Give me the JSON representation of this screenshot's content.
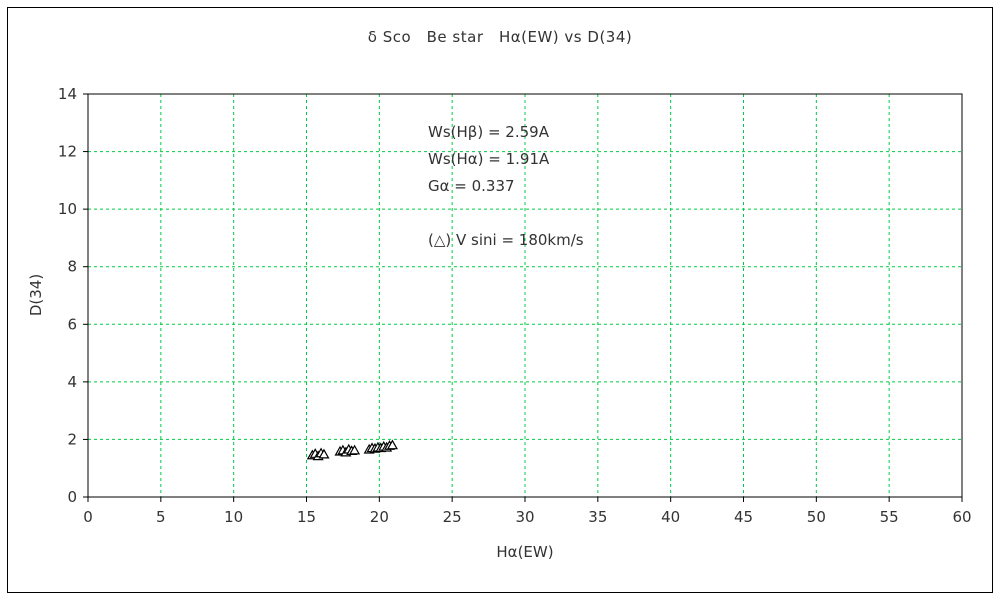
{
  "chart_data": {
    "type": "scatter",
    "title": "δ Sco　Be star　Hα(EW) vs D(34)",
    "xlabel": "Hα(EW)",
    "ylabel": "D(34)",
    "xlim": [
      0,
      60
    ],
    "ylim": [
      0,
      14
    ],
    "xticks": [
      0,
      5,
      10,
      15,
      20,
      25,
      30,
      35,
      40,
      45,
      50,
      55,
      60
    ],
    "yticks": [
      0,
      2,
      4,
      6,
      8,
      10,
      12,
      14
    ],
    "grid": true,
    "grid_color": "#00cc44",
    "grid_style": "dashed",
    "axis_color": "#000000",
    "tick_label_color": "#333333",
    "legend_position": "inside-top-center",
    "annotations": [
      "Ws(Hβ) = 2.59A",
      "Ws(Hα) = 1.91A",
      "Gα = 0.337"
    ],
    "legend_label": "(△) V sini = 180km/s",
    "series": [
      {
        "name": "V sini = 180km/s",
        "marker": "open-triangle",
        "marker_color": "#000000",
        "points": [
          {
            "x": 15.4,
            "y": 1.45
          },
          {
            "x": 15.6,
            "y": 1.5
          },
          {
            "x": 15.8,
            "y": 1.42
          },
          {
            "x": 16.0,
            "y": 1.52
          },
          {
            "x": 16.2,
            "y": 1.48
          },
          {
            "x": 17.3,
            "y": 1.58
          },
          {
            "x": 17.5,
            "y": 1.62
          },
          {
            "x": 17.7,
            "y": 1.55
          },
          {
            "x": 17.9,
            "y": 1.65
          },
          {
            "x": 18.1,
            "y": 1.6
          },
          {
            "x": 18.3,
            "y": 1.62
          },
          {
            "x": 19.3,
            "y": 1.65
          },
          {
            "x": 19.5,
            "y": 1.7
          },
          {
            "x": 19.7,
            "y": 1.68
          },
          {
            "x": 19.9,
            "y": 1.72
          },
          {
            "x": 20.1,
            "y": 1.7
          },
          {
            "x": 20.3,
            "y": 1.75
          },
          {
            "x": 20.5,
            "y": 1.72
          },
          {
            "x": 20.7,
            "y": 1.78
          },
          {
            "x": 20.9,
            "y": 1.8
          }
        ]
      }
    ]
  }
}
